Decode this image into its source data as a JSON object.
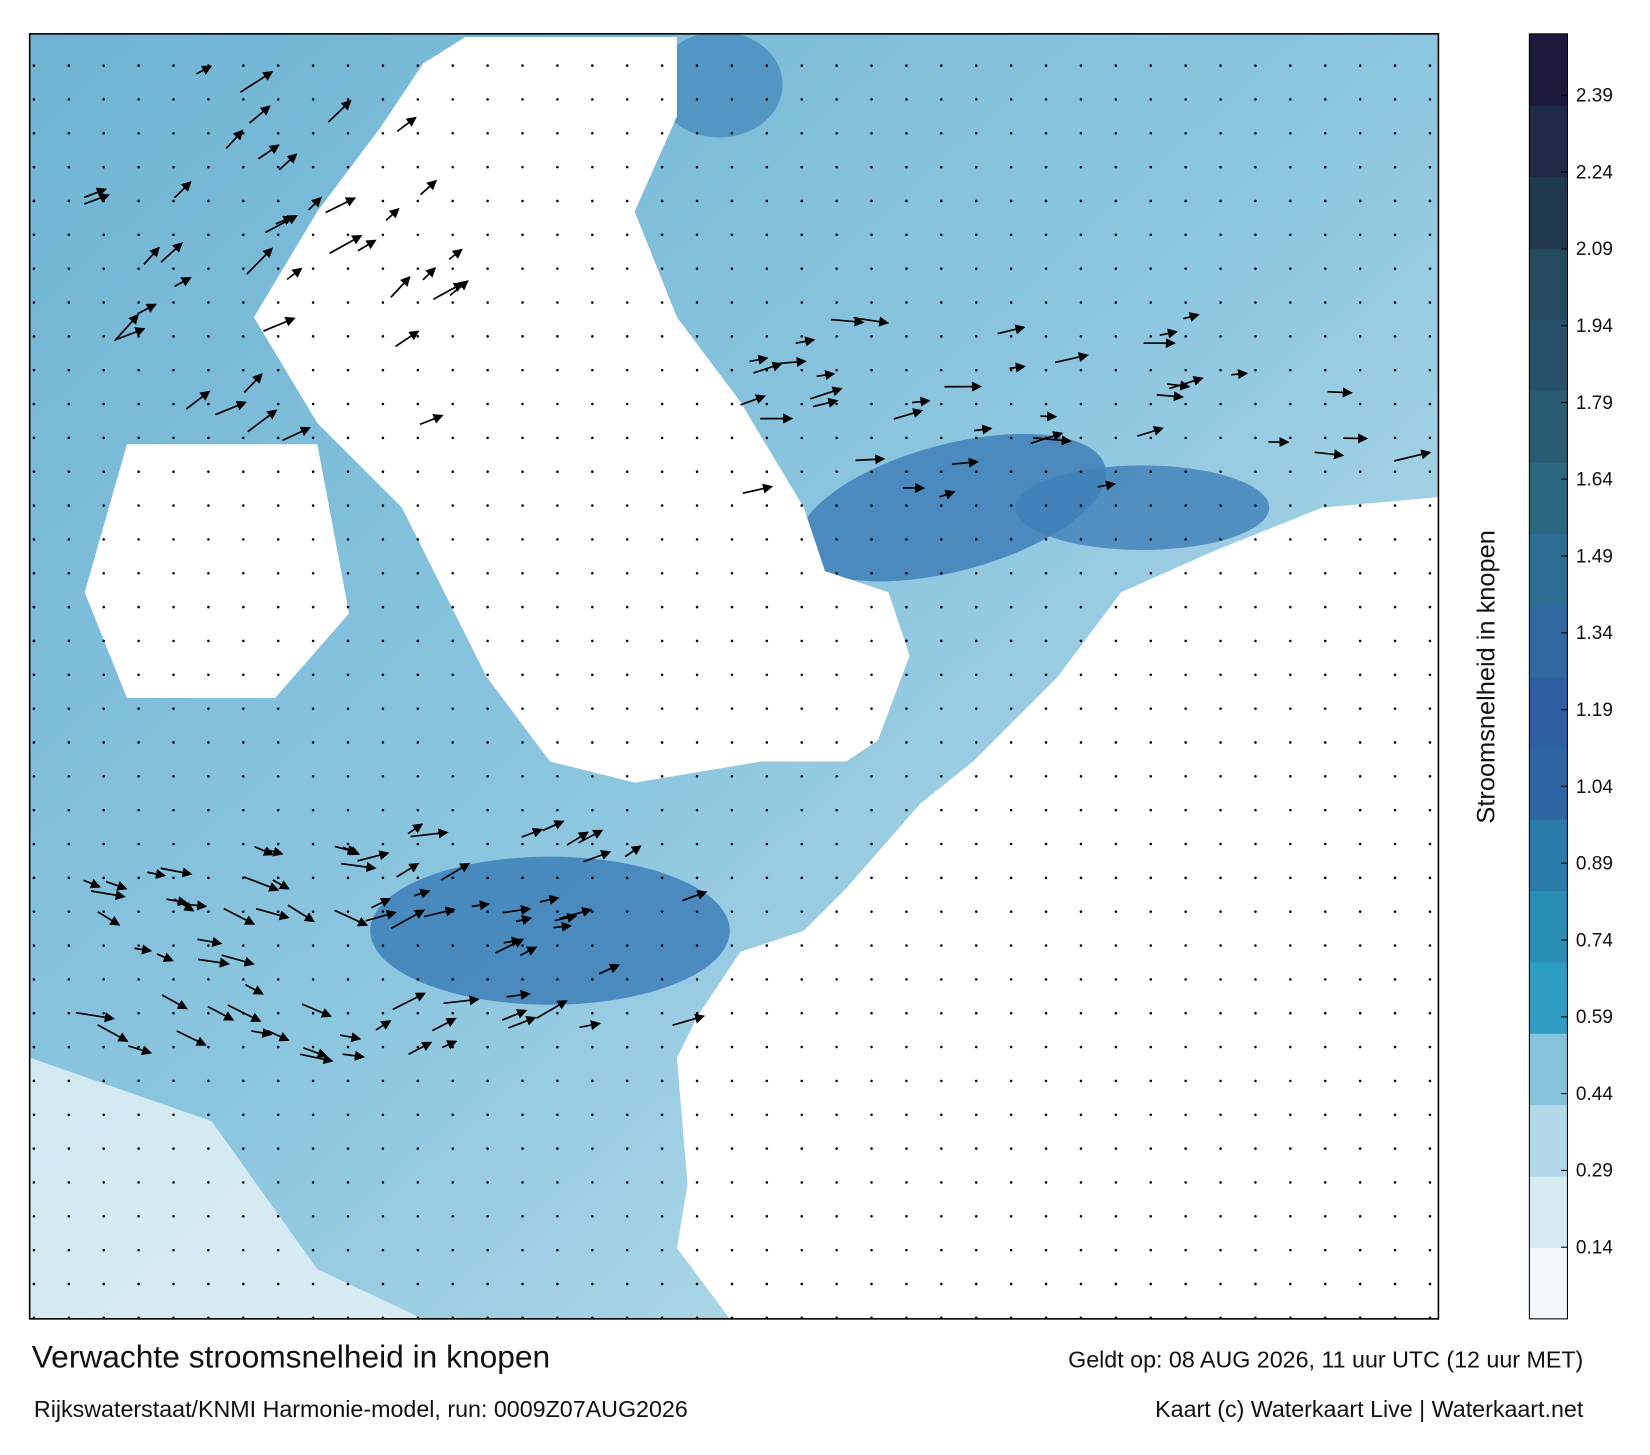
{
  "map": {
    "title": "Verwachte stroomsnelheid in knopen",
    "subtitle": "Rijkswaterstaat/KNMI Harmonie-model, run: 0009Z07AUG2026",
    "valid_time": "Geldt op: 08 AUG 2026, 11 uur UTC (12 uur MET)",
    "credit": "Kaart (c) Waterkaart Live | Waterkaart.net",
    "legend": {
      "title": "Stroomsnelheid in knopen",
      "range": [
        0,
        2.51
      ],
      "ticks": [
        0.14,
        0.29,
        0.44,
        0.59,
        0.74,
        0.89,
        1.04,
        1.19,
        1.34,
        1.49,
        1.64,
        1.79,
        1.94,
        2.09,
        2.24,
        2.39
      ],
      "colors": [
        "#f2f8fb",
        "#d6eaf2",
        "#b2d9e8",
        "#88c3dc",
        "#2f9cc2",
        "#2a8db4",
        "#2a7ba9",
        "#2d65a3",
        "#2f5fa3",
        "#2f69a0",
        "#2d6f93",
        "#2b6780",
        "#295c74",
        "#26516a",
        "#244a5e",
        "#21394f",
        "#1f2a46",
        "#1b1a3a"
      ]
    }
  }
}
